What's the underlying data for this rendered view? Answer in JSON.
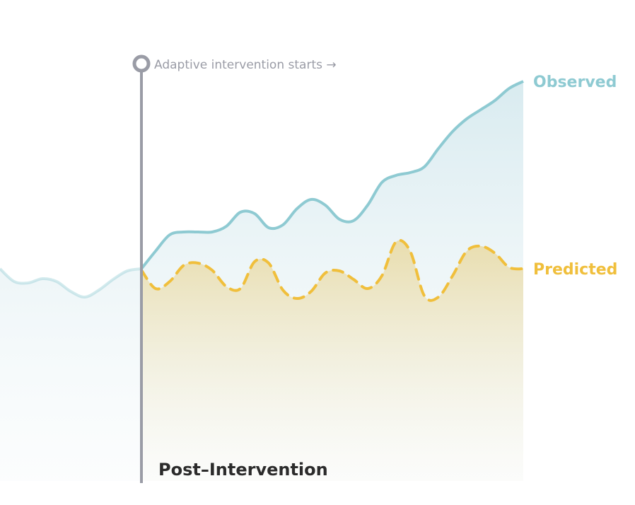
{
  "chart_data": {
    "type": "line",
    "annotation": {
      "text": "Adaptive intervention starts →",
      "x": 10
    },
    "section_label": "Post–Intervention",
    "xlim": [
      0,
      37
    ],
    "ylim": [
      0,
      600
    ],
    "series": [
      {
        "name": "Observed",
        "color": "#8ecad2",
        "style": "solid",
        "x": [
          0,
          1,
          2,
          3,
          4,
          5,
          6,
          7,
          8,
          9,
          10,
          11,
          12,
          13,
          14,
          15,
          16,
          17,
          18,
          19,
          20,
          21,
          22,
          23,
          24,
          25,
          26,
          27,
          28,
          29,
          30,
          31,
          32,
          33,
          34,
          35,
          36,
          37
        ],
        "values": [
          300,
          282,
          280,
          286,
          282,
          268,
          260,
          270,
          285,
          297,
          300,
          325,
          348,
          352,
          352,
          352,
          360,
          380,
          378,
          358,
          362,
          385,
          398,
          390,
          370,
          368,
          390,
          422,
          432,
          436,
          444,
          470,
          494,
          512,
          525,
          538,
          555,
          565
        ]
      },
      {
        "name": "Predicted",
        "color": "#f0bf3c",
        "style": "dashed",
        "x": [
          10,
          11,
          12,
          13,
          14,
          15,
          16,
          17,
          18,
          19,
          20,
          21,
          22,
          23,
          24,
          25,
          26,
          27,
          28,
          29,
          30,
          31,
          32,
          33,
          34,
          35,
          36,
          37
        ],
        "values": [
          298,
          272,
          282,
          305,
          308,
          298,
          275,
          272,
          310,
          308,
          270,
          258,
          268,
          294,
          297,
          285,
          272,
          290,
          338,
          325,
          262,
          260,
          290,
          325,
          332,
          322,
          302,
          300
        ]
      }
    ]
  }
}
